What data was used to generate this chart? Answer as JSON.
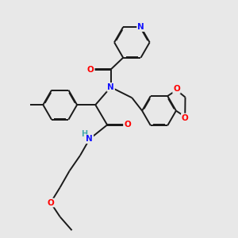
{
  "bg_color": "#e8e8e8",
  "bond_color": "#1a1a1a",
  "N_color": "#1414ff",
  "O_color": "#ff0000",
  "H_color": "#44aaaa",
  "lw": 1.4,
  "doffset": 0.028,
  "figsize": [
    3.0,
    3.0
  ],
  "dpi": 100,
  "xlim": [
    0,
    10
  ],
  "ylim": [
    0,
    10
  ]
}
